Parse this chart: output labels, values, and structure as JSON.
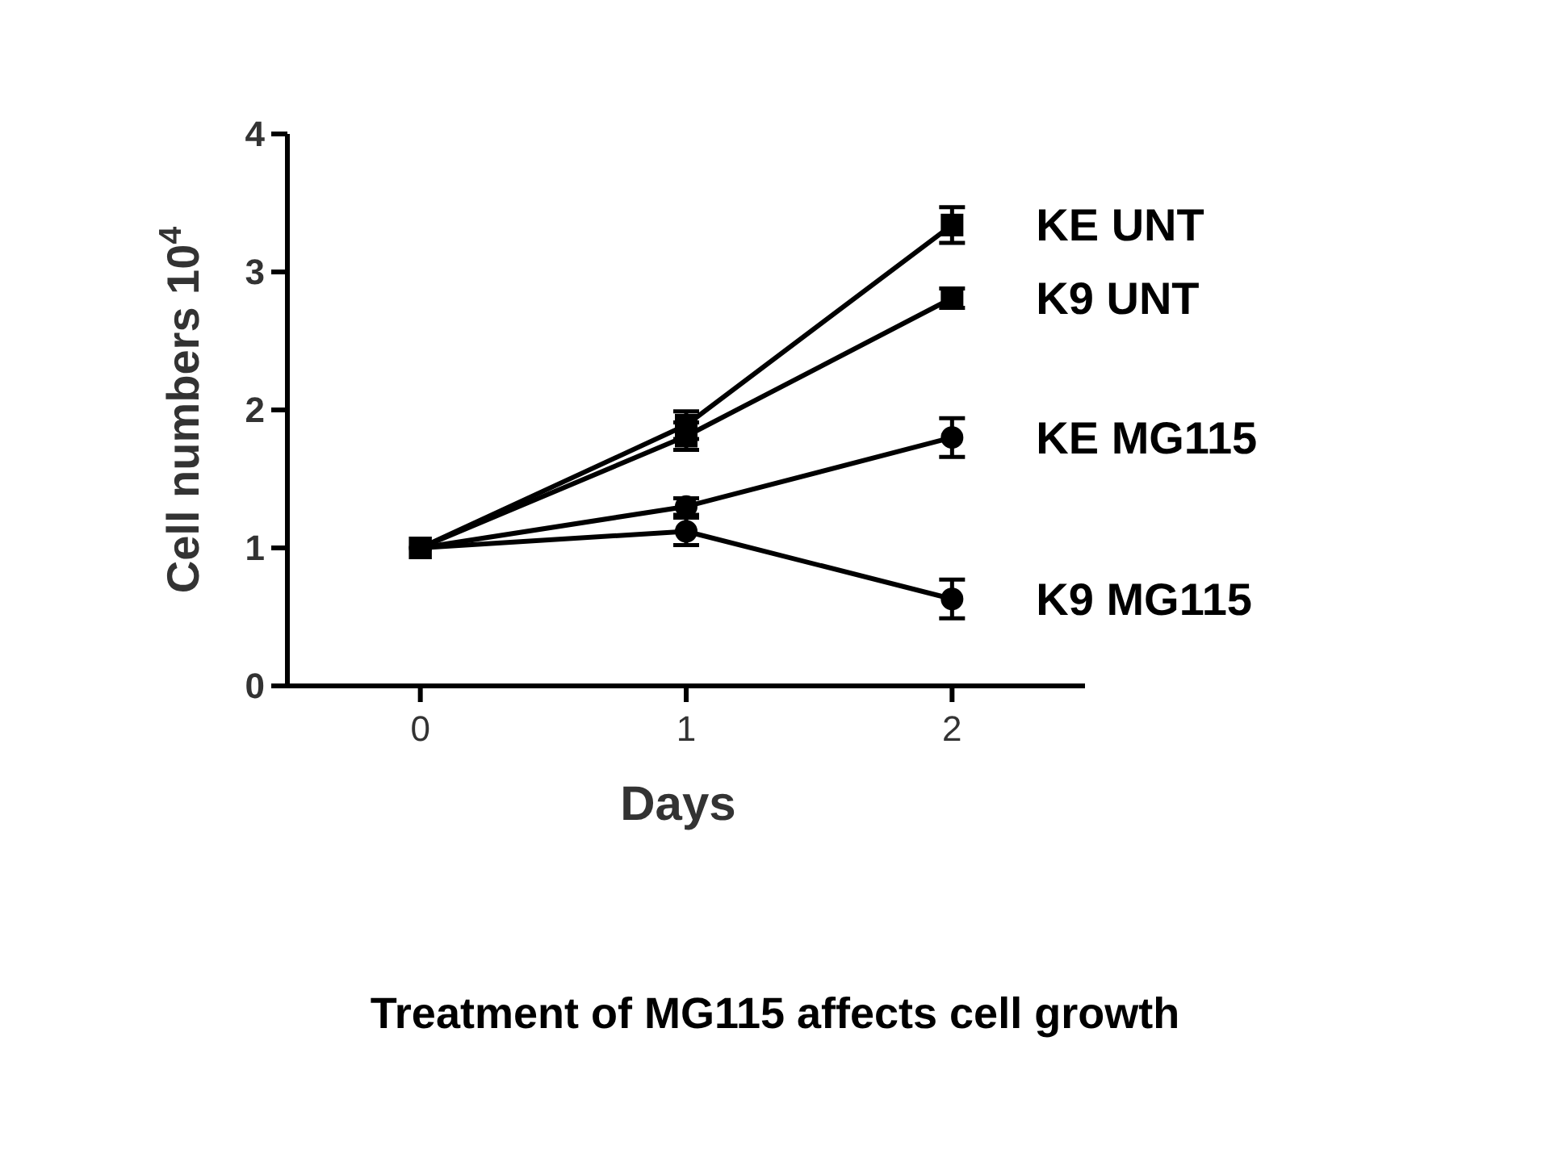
{
  "chart_data": {
    "type": "line",
    "ylabel": "Cell numbers 10$^{4}$",
    "xlabel": "Days",
    "x": [
      0,
      1,
      2
    ],
    "xlim": [
      -0.5,
      2.5
    ],
    "xticks": [
      0,
      1,
      2
    ],
    "ylim": [
      0,
      4
    ],
    "yticks": [
      0,
      1,
      2,
      3,
      4
    ],
    "grid": false,
    "line_style": "solid",
    "series": [
      {
        "name": "KE UNT",
        "color": "#000000",
        "marker": "square",
        "values": [
          1.0,
          1.89,
          3.34
        ],
        "errors": [
          null,
          0.1,
          0.13
        ]
      },
      {
        "name": "K9 UNT",
        "color": "#000000",
        "marker": "square",
        "values": [
          1.0,
          1.81,
          2.81
        ],
        "errors": [
          null,
          0.1,
          0.07
        ]
      },
      {
        "name": "KE MG115",
        "color": "#000000",
        "marker": "circle",
        "values": [
          1.0,
          1.3,
          1.8
        ],
        "errors": [
          null,
          0.06,
          0.14
        ]
      },
      {
        "name": "K9 MG115",
        "color": "#000000",
        "marker": "circle",
        "values": [
          1.0,
          1.12,
          0.63
        ],
        "errors": [
          null,
          0.1,
          0.14
        ]
      }
    ],
    "annotations": [
      "Treatment of MG115 affects cell growth"
    ]
  }
}
